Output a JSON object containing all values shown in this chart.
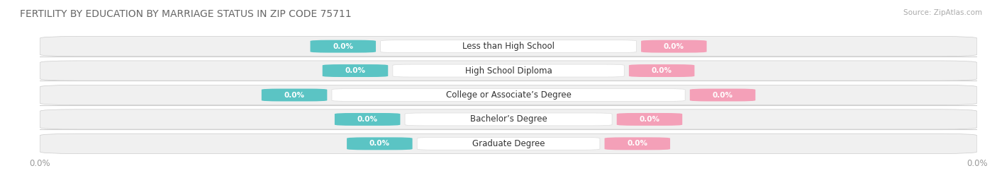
{
  "title": "FERTILITY BY EDUCATION BY MARRIAGE STATUS IN ZIP CODE 75711",
  "source": "Source: ZipAtlas.com",
  "categories": [
    "Less than High School",
    "High School Diploma",
    "College or Associate’s Degree",
    "Bachelor’s Degree",
    "Graduate Degree"
  ],
  "married_values": [
    0.0,
    0.0,
    0.0,
    0.0,
    0.0
  ],
  "unmarried_values": [
    0.0,
    0.0,
    0.0,
    0.0,
    0.0
  ],
  "married_color": "#5bc4c4",
  "unmarried_color": "#f4a0b8",
  "row_bg_light": "#f2f2f2",
  "row_bg_dark": "#e8e8e8",
  "label_bg_color": "#ffffff",
  "title_color": "#666666",
  "axis_label_color": "#999999",
  "legend_married_color": "#5bc4c4",
  "legend_unmarried_color": "#f4a0b8",
  "figsize": [
    14.06,
    2.69
  ],
  "dpi": 100
}
